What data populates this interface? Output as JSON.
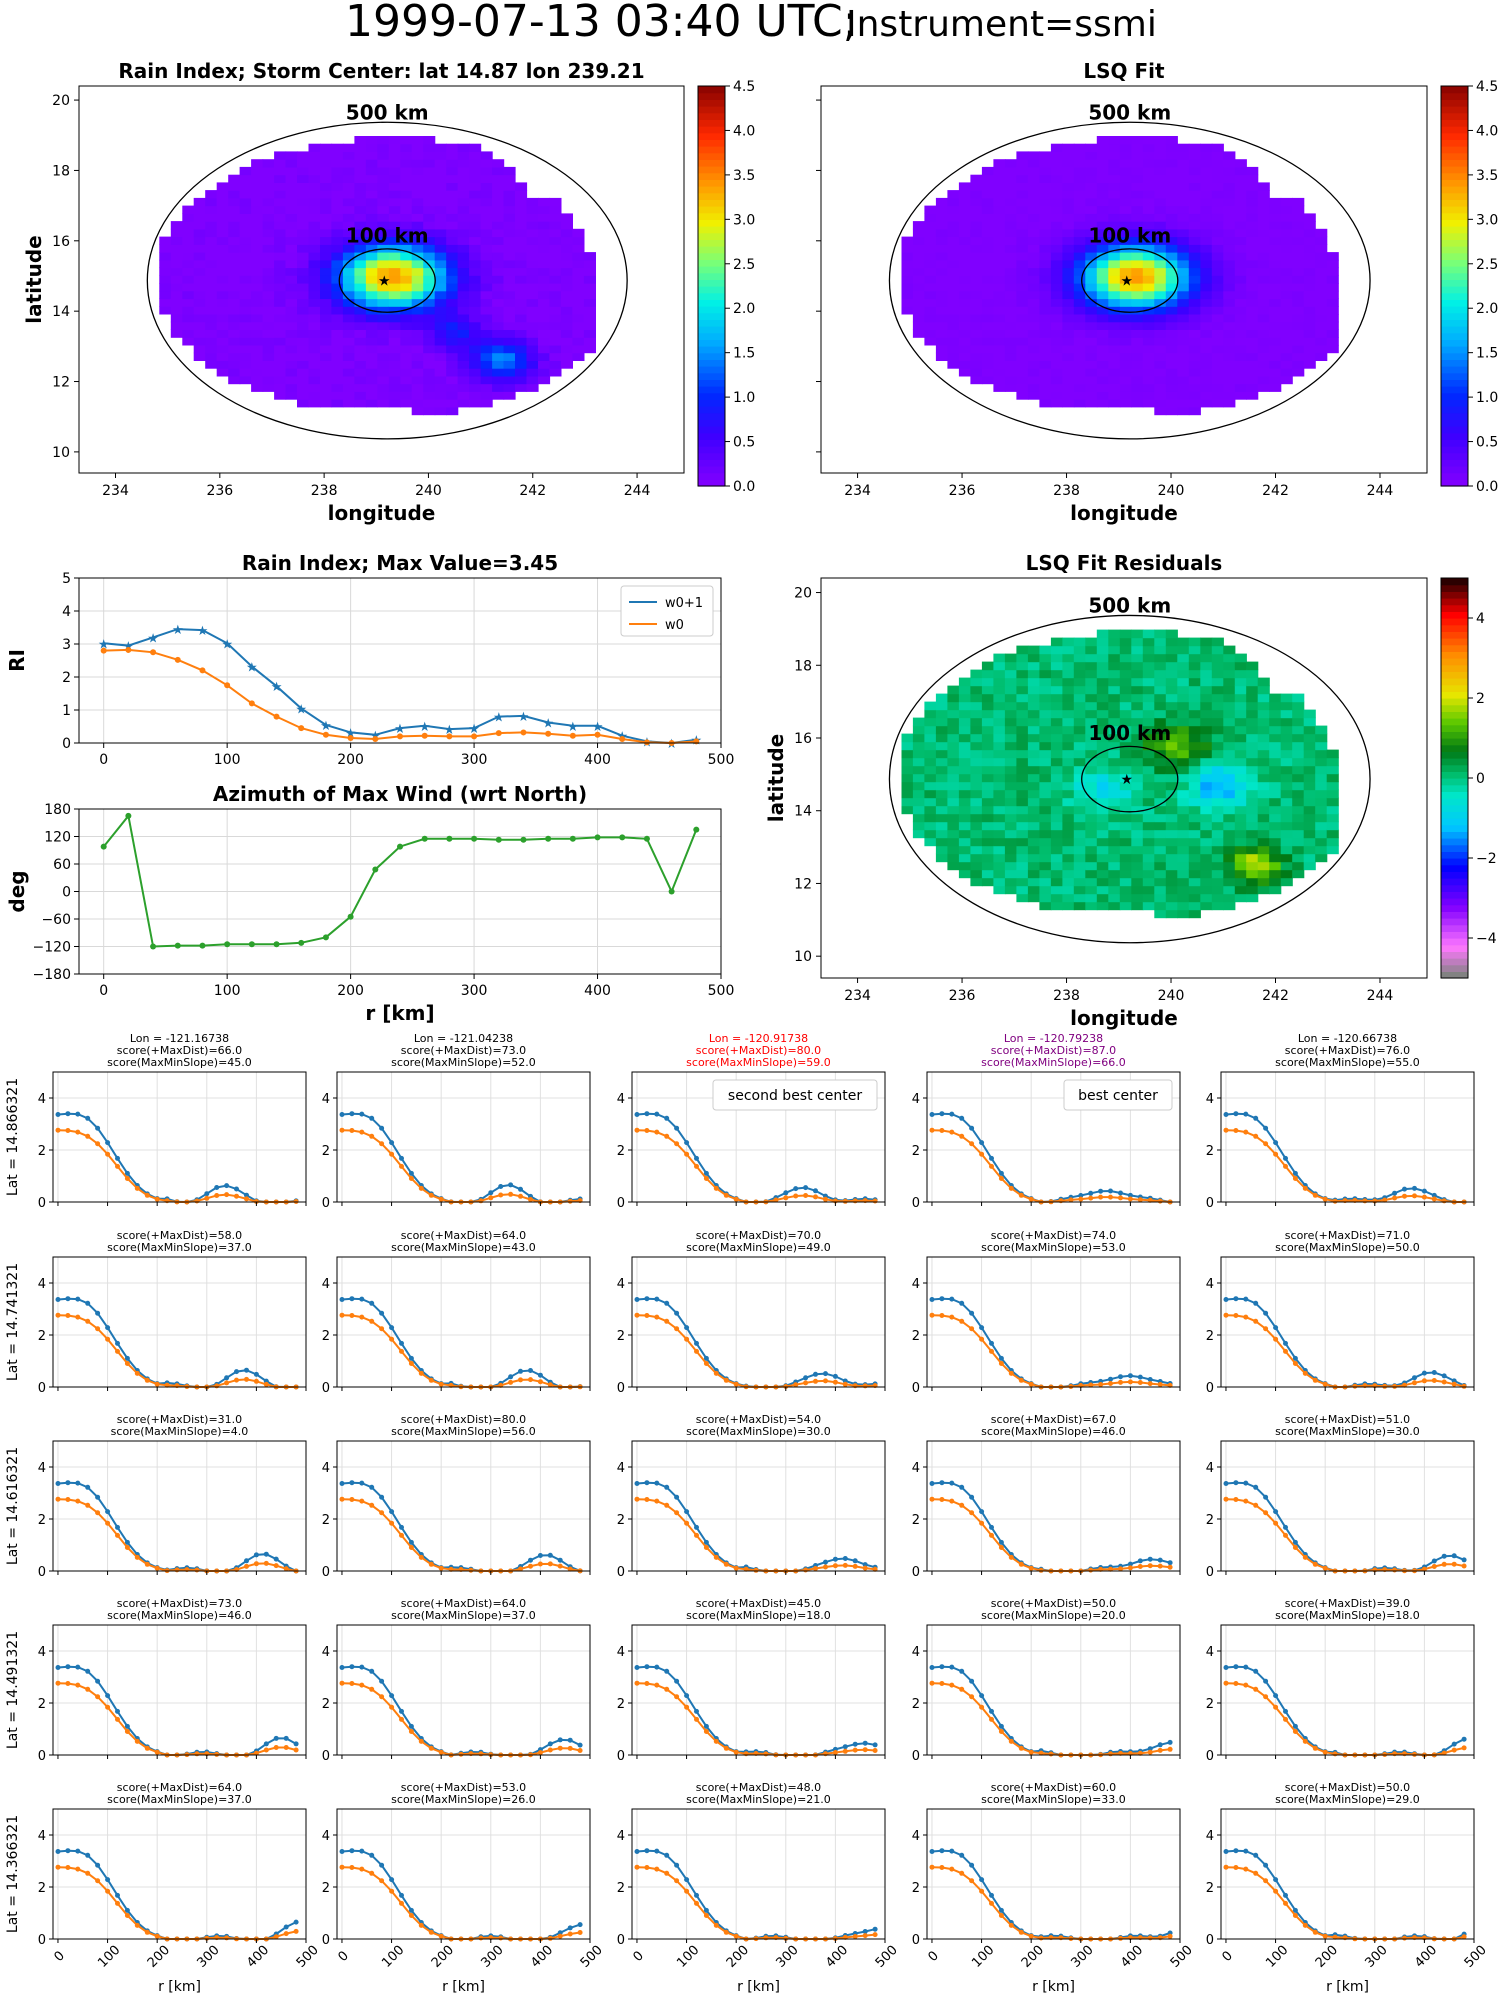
{
  "header": {
    "title_main": "1999-07-13 03:40 UTC;",
    "title_instrument": "Instrument=ssmi"
  },
  "colors": {
    "w0p1": "#1f77b4",
    "w0": "#ff7f0e",
    "azimuth": "#2ca02c",
    "red_highlight": "#ff0000",
    "purple_highlight": "#800080"
  },
  "maps": {
    "rain_index": {
      "title": "Rain Index; Storm Center: lat 14.87 lon 239.21",
      "xlabel": "longitude",
      "ylabel": "latitude",
      "xticks": [
        "234",
        "236",
        "238",
        "240",
        "242",
        "244"
      ],
      "yticks": [
        "10",
        "12",
        "14",
        "16",
        "18",
        "20"
      ],
      "colorbar_ticks": [
        "0.0",
        "0.5",
        "1.0",
        "1.5",
        "2.0",
        "2.5",
        "3.0",
        "3.5",
        "4.0",
        "4.5"
      ],
      "colorscale": "jet",
      "label_500": "500 km",
      "label_100": "100 km"
    },
    "lsq_fit": {
      "title": "LSQ Fit",
      "xlabel": "longitude",
      "xticks": [
        "234",
        "236",
        "238",
        "240",
        "242",
        "244"
      ],
      "colorbar_ticks": [
        "0.0",
        "0.5",
        "1.0",
        "1.5",
        "2.0",
        "2.5",
        "3.0",
        "3.5",
        "4.0",
        "4.5"
      ],
      "colorscale": "jet",
      "label_500": "500 km",
      "label_100": "100 km"
    },
    "residuals": {
      "title": "LSQ Fit Residuals",
      "xlabel": "longitude",
      "ylabel": "latitude",
      "xticks": [
        "234",
        "236",
        "238",
        "240",
        "242",
        "244"
      ],
      "yticks": [
        "10",
        "12",
        "14",
        "16",
        "18",
        "20"
      ],
      "colorbar_ticks": [
        "−4",
        "−2",
        "0",
        "2",
        "4"
      ],
      "colorscale": "diverging",
      "label_500": "500 km",
      "label_100": "100 km"
    }
  },
  "chart_data": [
    {
      "id": "rain_profile",
      "type": "line",
      "title": "Rain Index; Max Value=3.45",
      "ylabel": "RI",
      "xlim": [
        -20,
        500
      ],
      "ylim": [
        0,
        5
      ],
      "xticks": [
        "0",
        "100",
        "200",
        "300",
        "400",
        "500"
      ],
      "yticks": [
        "0",
        "1",
        "2",
        "3",
        "4",
        "5"
      ],
      "x": [
        0,
        20,
        40,
        60,
        80,
        100,
        120,
        140,
        160,
        180,
        200,
        220,
        240,
        260,
        280,
        300,
        320,
        340,
        360,
        380,
        400,
        420,
        440,
        460,
        480
      ],
      "series": [
        {
          "name": "w0+1",
          "values": [
            3.02,
            2.95,
            3.2,
            3.45,
            3.42,
            3.02,
            2.32,
            1.72,
            1.05,
            0.55,
            0.32,
            0.25,
            0.45,
            0.52,
            0.42,
            0.45,
            0.8,
            0.82,
            0.62,
            0.52,
            0.52,
            0.22,
            0.05,
            0.0,
            0.1
          ]
        },
        {
          "name": "w0",
          "values": [
            2.8,
            2.82,
            2.75,
            2.52,
            2.2,
            1.75,
            1.2,
            0.8,
            0.45,
            0.25,
            0.15,
            0.12,
            0.2,
            0.22,
            0.2,
            0.2,
            0.3,
            0.32,
            0.28,
            0.22,
            0.25,
            0.12,
            0.02,
            0.0,
            0.05
          ]
        }
      ]
    },
    {
      "id": "azimuth_profile",
      "type": "line",
      "title": "Azimuth of Max Wind (wrt North)",
      "xlabel": "r [km]",
      "ylabel": "deg",
      "xlim": [
        -20,
        500
      ],
      "ylim": [
        -180,
        180
      ],
      "xticks": [
        "0",
        "100",
        "200",
        "300",
        "400",
        "500"
      ],
      "yticks": [
        "−180",
        "−120",
        "−60",
        "0",
        "60",
        "120",
        "180"
      ],
      "x": [
        0,
        20,
        40,
        60,
        80,
        100,
        120,
        140,
        160,
        180,
        200,
        220,
        240,
        260,
        280,
        300,
        320,
        340,
        360,
        380,
        400,
        420,
        440,
        460,
        480
      ],
      "series": [
        {
          "name": "",
          "values": [
            98,
            165,
            -120,
            -118,
            -118,
            -115,
            -115,
            -115,
            -112,
            -100,
            -55,
            48,
            98,
            115,
            115,
            115,
            113,
            113,
            115,
            115,
            118,
            118,
            115,
            0,
            135
          ]
        }
      ]
    }
  ],
  "grid": {
    "xlabel": "r [km]",
    "xticks": [
      "0",
      "100",
      "200",
      "300",
      "400",
      "500"
    ],
    "yticks": [
      "0",
      "2",
      "4"
    ],
    "ylim": [
      0,
      5
    ],
    "xlim": [
      -10,
      500
    ],
    "row_labels": [
      "Lat = 14.866321",
      "Lat = 14.741321",
      "Lat = 14.616321",
      "Lat = 14.491321",
      "Lat = 14.366321"
    ],
    "lon_labels": [
      "Lon = -121.16738",
      "Lon = -121.04238",
      "Lon = -120.91738",
      "Lon = -120.79238",
      "Lon = -120.66738"
    ],
    "cells": [
      [
        {
          "s1": "score(+MaxDist)=66.0",
          "s2": "score(MaxMinSlope)=45.0",
          "color": "#000000",
          "box": ""
        },
        {
          "s1": "score(+MaxDist)=73.0",
          "s2": "score(MaxMinSlope)=52.0",
          "color": "#000000",
          "box": ""
        },
        {
          "s1": "score(+MaxDist)=80.0",
          "s2": "score(MaxMinSlope)=59.0",
          "color": "#ff0000",
          "box": "second best center"
        },
        {
          "s1": "score(+MaxDist)=87.0",
          "s2": "score(MaxMinSlope)=66.0",
          "color": "#800080",
          "box": "best center"
        },
        {
          "s1": "score(+MaxDist)=76.0",
          "s2": "score(MaxMinSlope)=55.0",
          "color": "#000000",
          "box": ""
        }
      ],
      [
        {
          "s1": "score(+MaxDist)=58.0",
          "s2": "score(MaxMinSlope)=37.0",
          "color": "#000000",
          "box": ""
        },
        {
          "s1": "score(+MaxDist)=64.0",
          "s2": "score(MaxMinSlope)=43.0",
          "color": "#000000",
          "box": ""
        },
        {
          "s1": "score(+MaxDist)=70.0",
          "s2": "score(MaxMinSlope)=49.0",
          "color": "#000000",
          "box": ""
        },
        {
          "s1": "score(+MaxDist)=74.0",
          "s2": "score(MaxMinSlope)=53.0",
          "color": "#000000",
          "box": ""
        },
        {
          "s1": "score(+MaxDist)=71.0",
          "s2": "score(MaxMinSlope)=50.0",
          "color": "#000000",
          "box": ""
        }
      ],
      [
        {
          "s1": "score(+MaxDist)=31.0",
          "s2": "score(MaxMinSlope)=4.0",
          "color": "#000000",
          "box": ""
        },
        {
          "s1": "score(+MaxDist)=80.0",
          "s2": "score(MaxMinSlope)=56.0",
          "color": "#000000",
          "box": ""
        },
        {
          "s1": "score(+MaxDist)=54.0",
          "s2": "score(MaxMinSlope)=30.0",
          "color": "#000000",
          "box": ""
        },
        {
          "s1": "score(+MaxDist)=67.0",
          "s2": "score(MaxMinSlope)=46.0",
          "color": "#000000",
          "box": ""
        },
        {
          "s1": "score(+MaxDist)=51.0",
          "s2": "score(MaxMinSlope)=30.0",
          "color": "#000000",
          "box": ""
        }
      ],
      [
        {
          "s1": "score(+MaxDist)=73.0",
          "s2": "score(MaxMinSlope)=46.0",
          "color": "#000000",
          "box": ""
        },
        {
          "s1": "score(+MaxDist)=64.0",
          "s2": "score(MaxMinSlope)=37.0",
          "color": "#000000",
          "box": ""
        },
        {
          "s1": "score(+MaxDist)=45.0",
          "s2": "score(MaxMinSlope)=18.0",
          "color": "#000000",
          "box": ""
        },
        {
          "s1": "score(+MaxDist)=50.0",
          "s2": "score(MaxMinSlope)=20.0",
          "color": "#000000",
          "box": ""
        },
        {
          "s1": "score(+MaxDist)=39.0",
          "s2": "score(MaxMinSlope)=18.0",
          "color": "#000000",
          "box": ""
        }
      ],
      [
        {
          "s1": "score(+MaxDist)=64.0",
          "s2": "score(MaxMinSlope)=37.0",
          "color": "#000000",
          "box": ""
        },
        {
          "s1": "score(+MaxDist)=53.0",
          "s2": "score(MaxMinSlope)=26.0",
          "color": "#000000",
          "box": ""
        },
        {
          "s1": "score(+MaxDist)=48.0",
          "s2": "score(MaxMinSlope)=21.0",
          "color": "#000000",
          "box": ""
        },
        {
          "s1": "score(+MaxDist)=60.0",
          "s2": "score(MaxMinSlope)=33.0",
          "color": "#000000",
          "box": ""
        },
        {
          "s1": "score(+MaxDist)=50.0",
          "s2": "score(MaxMinSlope)=29.0",
          "color": "#000000",
          "box": ""
        }
      ]
    ]
  }
}
